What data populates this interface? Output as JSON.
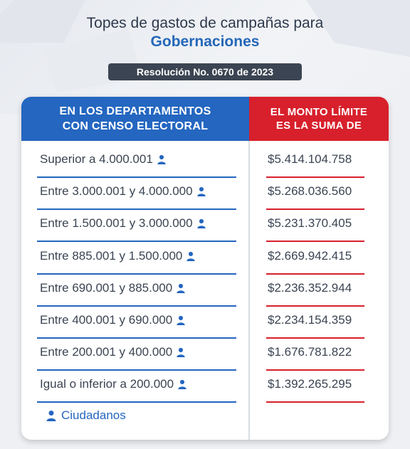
{
  "title": {
    "line1": "Topes de gastos de campañas para",
    "line2": "Gobernaciones"
  },
  "badge": "Resolución No. 0670 de 2023",
  "table": {
    "header_left_line1": "EN LOS DEPARTAMENTOS",
    "header_left_line2": "CON CENSO ELECTORAL",
    "header_right_line1": "EL MONTO LÍMITE",
    "header_right_line2": "ES LA SUMA DE",
    "rows": [
      {
        "range": "Superior a 4.000.001",
        "amount": "$5.414.104.758"
      },
      {
        "range": "Entre 3.000.001 y 4.000.000",
        "amount": "$5.268.036.560"
      },
      {
        "range": "Entre 1.500.001 y 3.000.000",
        "amount": "$5.231.370.405"
      },
      {
        "range": "Entre 885.001 y 1.500.000",
        "amount": "$2.669.942.415"
      },
      {
        "range": "Entre 690.001 y 885.000",
        "amount": "$2.236.352.944"
      },
      {
        "range": "Entre 400.001 y 690.000",
        "amount": "$2.234.154.359"
      },
      {
        "range": "Entre 200.001 y 400.000",
        "amount": "$1.676.781.822"
      },
      {
        "range": "Igual o inferior a 200.000",
        "amount": "$1.392.265.295"
      }
    ],
    "legend": "Ciudadanos",
    "icon": "person-icon"
  },
  "colors": {
    "blue": "#2466c0",
    "red": "#d7202b",
    "dark": "#3b4452"
  }
}
